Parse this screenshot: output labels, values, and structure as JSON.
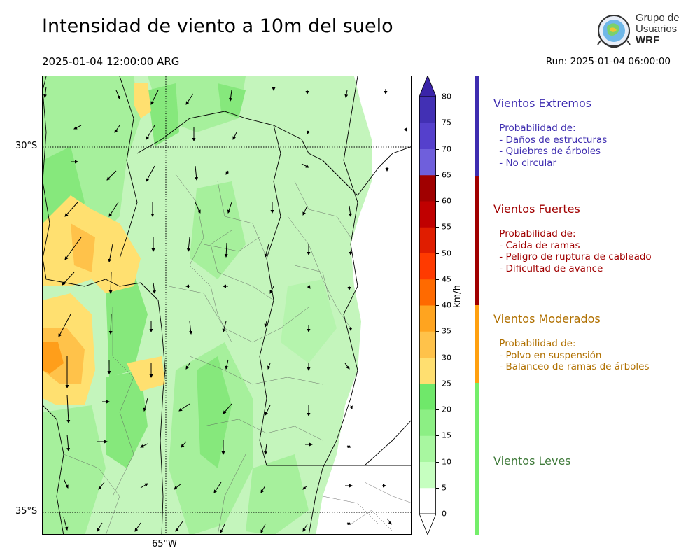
{
  "header": {
    "title": "Intensidad de viento a 10m del suelo",
    "valid_time": "2025-01-04 12:00:00 ARG",
    "run_time": "Run: 2025-01-04 06:00:00"
  },
  "logo": {
    "line1": "Grupo de",
    "line2": "Usuarios",
    "line3": "WRF"
  },
  "map": {
    "lat_labels": [
      "30°S",
      "35°S"
    ],
    "lon_labels": [
      "65°W"
    ]
  },
  "colorbar": {
    "unit": "km/h",
    "ticks": [
      "0",
      "5",
      "10",
      "15",
      "20",
      "25",
      "30",
      "35",
      "40",
      "45",
      "50",
      "55",
      "60",
      "65",
      "70",
      "75",
      "80"
    ],
    "colors": [
      "#ffffff",
      "#c6ffc0",
      "#a8f7a0",
      "#8cef84",
      "#6fe86a",
      "#ffdf70",
      "#ffc24a",
      "#ffa41f",
      "#ff6a00",
      "#ff3a00",
      "#e01d00",
      "#c00000",
      "#a00000",
      "#6f5fdc",
      "#5540cc",
      "#4230b4"
    ],
    "extend_max_color": "#3a24a8"
  },
  "categories": [
    {
      "name": "Vientos Extremos",
      "color": "#3e2db0",
      "text": " Probabilidad de:\n - Daños de estructuras\n - Quiebres de árboles\n - No circular"
    },
    {
      "name": "Vientos Fuertes",
      "color": "#a00000",
      "text": " Probabilidad de:\n - Caida de ramas\n - Peligro de ruptura de cableado\n - Dificultad de avance"
    },
    {
      "name": "Vientos Moderados",
      "color": "#b07000",
      "text": " Probabilidad de:\n - Polvo en suspensión\n - Balanceo de ramas de árboles"
    },
    {
      "name": "Vientos Leves",
      "color": "#3f7a3a",
      "text": ""
    }
  ],
  "category_bar_colors": [
    "#3e2db0",
    "#a00000",
    "#ffa010",
    "#74ee6a"
  ]
}
